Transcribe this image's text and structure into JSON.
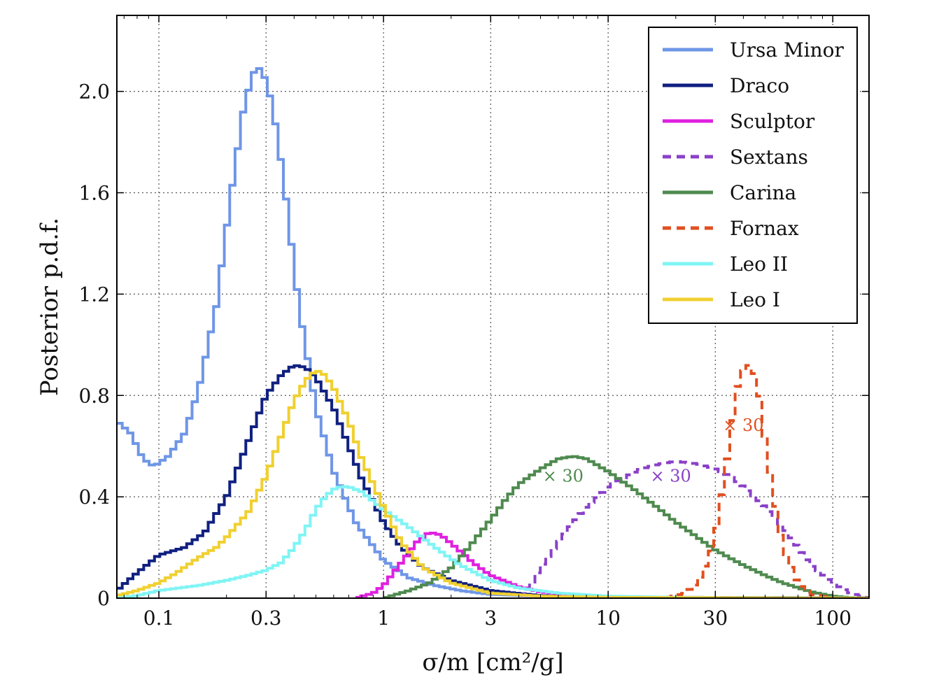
{
  "chart_data": {
    "type": "line",
    "xlabel": "σ/m [cm²/g]",
    "ylabel": "Posterior p.d.f.",
    "x_scale": "log",
    "xlim": [
      0.065,
      145
    ],
    "ylim": [
      0,
      2.3
    ],
    "xticks": [
      {
        "value": 0.1,
        "label": "0.1"
      },
      {
        "value": 0.3,
        "label": "0.3"
      },
      {
        "value": 1,
        "label": "1"
      },
      {
        "value": 3,
        "label": "3"
      },
      {
        "value": 10,
        "label": "10"
      },
      {
        "value": 30,
        "label": "30"
      },
      {
        "value": 100,
        "label": "100"
      }
    ],
    "yticks": [
      {
        "value": 0,
        "label": "0"
      },
      {
        "value": 0.4,
        "label": "0.4"
      },
      {
        "value": 0.8,
        "label": "0.8"
      },
      {
        "value": 1.2,
        "label": "1.2"
      },
      {
        "value": 1.6,
        "label": "1.6"
      },
      {
        "value": 2.0,
        "label": "2.0"
      }
    ],
    "grid": true,
    "legend_position": "top-right",
    "series": [
      {
        "name": "Ursa Minor",
        "color": "#6f96e6",
        "dash": false,
        "x": [
          0.065,
          0.075,
          0.085,
          0.095,
          0.11,
          0.13,
          0.15,
          0.18,
          0.21,
          0.24,
          0.27,
          0.29,
          0.32,
          0.36,
          0.42,
          0.5,
          0.6,
          0.75,
          1,
          1.3,
          1.7,
          2.2,
          3,
          5,
          10,
          30,
          145
        ],
        "y": [
          0.7,
          0.65,
          0.55,
          0.52,
          0.56,
          0.65,
          0.82,
          1.15,
          1.6,
          1.95,
          2.1,
          2.08,
          1.95,
          1.65,
          1.15,
          0.75,
          0.5,
          0.3,
          0.15,
          0.08,
          0.05,
          0.03,
          0.015,
          0.008,
          0.004,
          0.002,
          0.001
        ]
      },
      {
        "name": "Draco",
        "color": "#102080",
        "dash": false,
        "x": [
          0.065,
          0.08,
          0.1,
          0.13,
          0.16,
          0.2,
          0.25,
          0.3,
          0.35,
          0.4,
          0.45,
          0.5,
          0.6,
          0.7,
          0.8,
          1,
          1.2,
          1.5,
          2,
          3,
          5,
          10,
          145
        ],
        "y": [
          0.03,
          0.1,
          0.17,
          0.2,
          0.26,
          0.4,
          0.62,
          0.8,
          0.88,
          0.92,
          0.91,
          0.87,
          0.75,
          0.6,
          0.47,
          0.3,
          0.2,
          0.12,
          0.07,
          0.03,
          0.01,
          0.004,
          0.001
        ]
      },
      {
        "name": "Sculptor",
        "color": "#e020e0",
        "dash": false,
        "x": [
          0.75,
          0.9,
          1,
          1.2,
          1.4,
          1.6,
          1.8,
          2.1,
          2.5,
          3,
          4,
          5,
          7,
          10,
          20,
          50,
          145
        ],
        "y": [
          0.0,
          0.02,
          0.05,
          0.14,
          0.22,
          0.26,
          0.25,
          0.2,
          0.14,
          0.09,
          0.045,
          0.025,
          0.012,
          0.006,
          0.002,
          0.001,
          0.0
        ]
      },
      {
        "name": "Sextans",
        "color": "#8a40c8",
        "dash": true,
        "annotation": "× 30",
        "x": [
          4,
          4.5,
          5,
          6,
          7,
          8,
          9,
          10,
          12,
          14,
          17,
          20,
          25,
          30,
          35,
          40,
          50,
          60,
          70,
          80,
          100,
          120,
          145
        ],
        "y": [
          0.0,
          0.05,
          0.12,
          0.22,
          0.3,
          0.36,
          0.4,
          0.44,
          0.48,
          0.51,
          0.53,
          0.54,
          0.53,
          0.51,
          0.48,
          0.44,
          0.36,
          0.28,
          0.2,
          0.13,
          0.06,
          0.02,
          0.0
        ]
      },
      {
        "name": "Carina",
        "color": "#4f8a4f",
        "dash": false,
        "annotation": "× 30",
        "x": [
          1,
          1.3,
          1.6,
          2,
          2.3,
          2.6,
          3,
          3.5,
          4,
          5,
          6,
          7,
          8,
          10,
          13,
          17,
          20,
          25,
          30,
          40,
          50,
          60,
          80,
          100,
          120,
          145
        ],
        "y": [
          0.0,
          0.03,
          0.06,
          0.12,
          0.18,
          0.24,
          0.31,
          0.39,
          0.45,
          0.51,
          0.55,
          0.56,
          0.55,
          0.5,
          0.43,
          0.35,
          0.3,
          0.24,
          0.19,
          0.13,
          0.09,
          0.06,
          0.025,
          0.008,
          0.002,
          0.0
        ]
      },
      {
        "name": "Fornax",
        "color": "#e05020",
        "dash": true,
        "annotation": "× 30",
        "x": [
          18,
          22,
          25,
          28,
          30,
          33,
          36,
          38,
          40,
          42,
          44,
          46,
          48,
          50,
          55,
          60,
          70,
          80,
          100,
          145
        ],
        "y": [
          0.0,
          0.02,
          0.06,
          0.15,
          0.25,
          0.48,
          0.72,
          0.85,
          0.9,
          0.92,
          0.9,
          0.85,
          0.75,
          0.62,
          0.38,
          0.2,
          0.06,
          0.015,
          0.0,
          0.0
        ]
      },
      {
        "name": "Leo II",
        "color": "#80f4f4",
        "dash": false,
        "x": [
          0.065,
          0.08,
          0.1,
          0.15,
          0.2,
          0.25,
          0.3,
          0.35,
          0.4,
          0.45,
          0.5,
          0.55,
          0.6,
          0.65,
          0.7,
          0.8,
          1,
          1.3,
          1.7,
          2.2,
          3,
          4,
          6,
          10,
          20,
          145
        ],
        "y": [
          0.0,
          0.01,
          0.03,
          0.05,
          0.07,
          0.09,
          0.11,
          0.14,
          0.2,
          0.27,
          0.35,
          0.4,
          0.43,
          0.44,
          0.44,
          0.42,
          0.35,
          0.28,
          0.2,
          0.13,
          0.07,
          0.04,
          0.02,
          0.008,
          0.003,
          0.0
        ]
      },
      {
        "name": "Leo I",
        "color": "#f0d030",
        "dash": false,
        "x": [
          0.065,
          0.08,
          0.1,
          0.12,
          0.15,
          0.18,
          0.2,
          0.25,
          0.3,
          0.35,
          0.4,
          0.45,
          0.5,
          0.55,
          0.6,
          0.7,
          0.8,
          1,
          1.2,
          1.5,
          2,
          3,
          5,
          10,
          145
        ],
        "y": [
          0.01,
          0.03,
          0.06,
          0.1,
          0.16,
          0.2,
          0.24,
          0.34,
          0.48,
          0.64,
          0.78,
          0.86,
          0.9,
          0.88,
          0.83,
          0.7,
          0.55,
          0.36,
          0.22,
          0.12,
          0.06,
          0.02,
          0.008,
          0.003,
          0.0
        ]
      }
    ],
    "annotations": [
      {
        "text": "× 30",
        "series": "Carina",
        "x": 6.3,
        "y": 0.46
      },
      {
        "text": "× 30",
        "series": "Sextans",
        "x": 19,
        "y": 0.46
      },
      {
        "text": "× 30",
        "series": "Fornax",
        "x": 40,
        "y": 0.66
      }
    ]
  }
}
